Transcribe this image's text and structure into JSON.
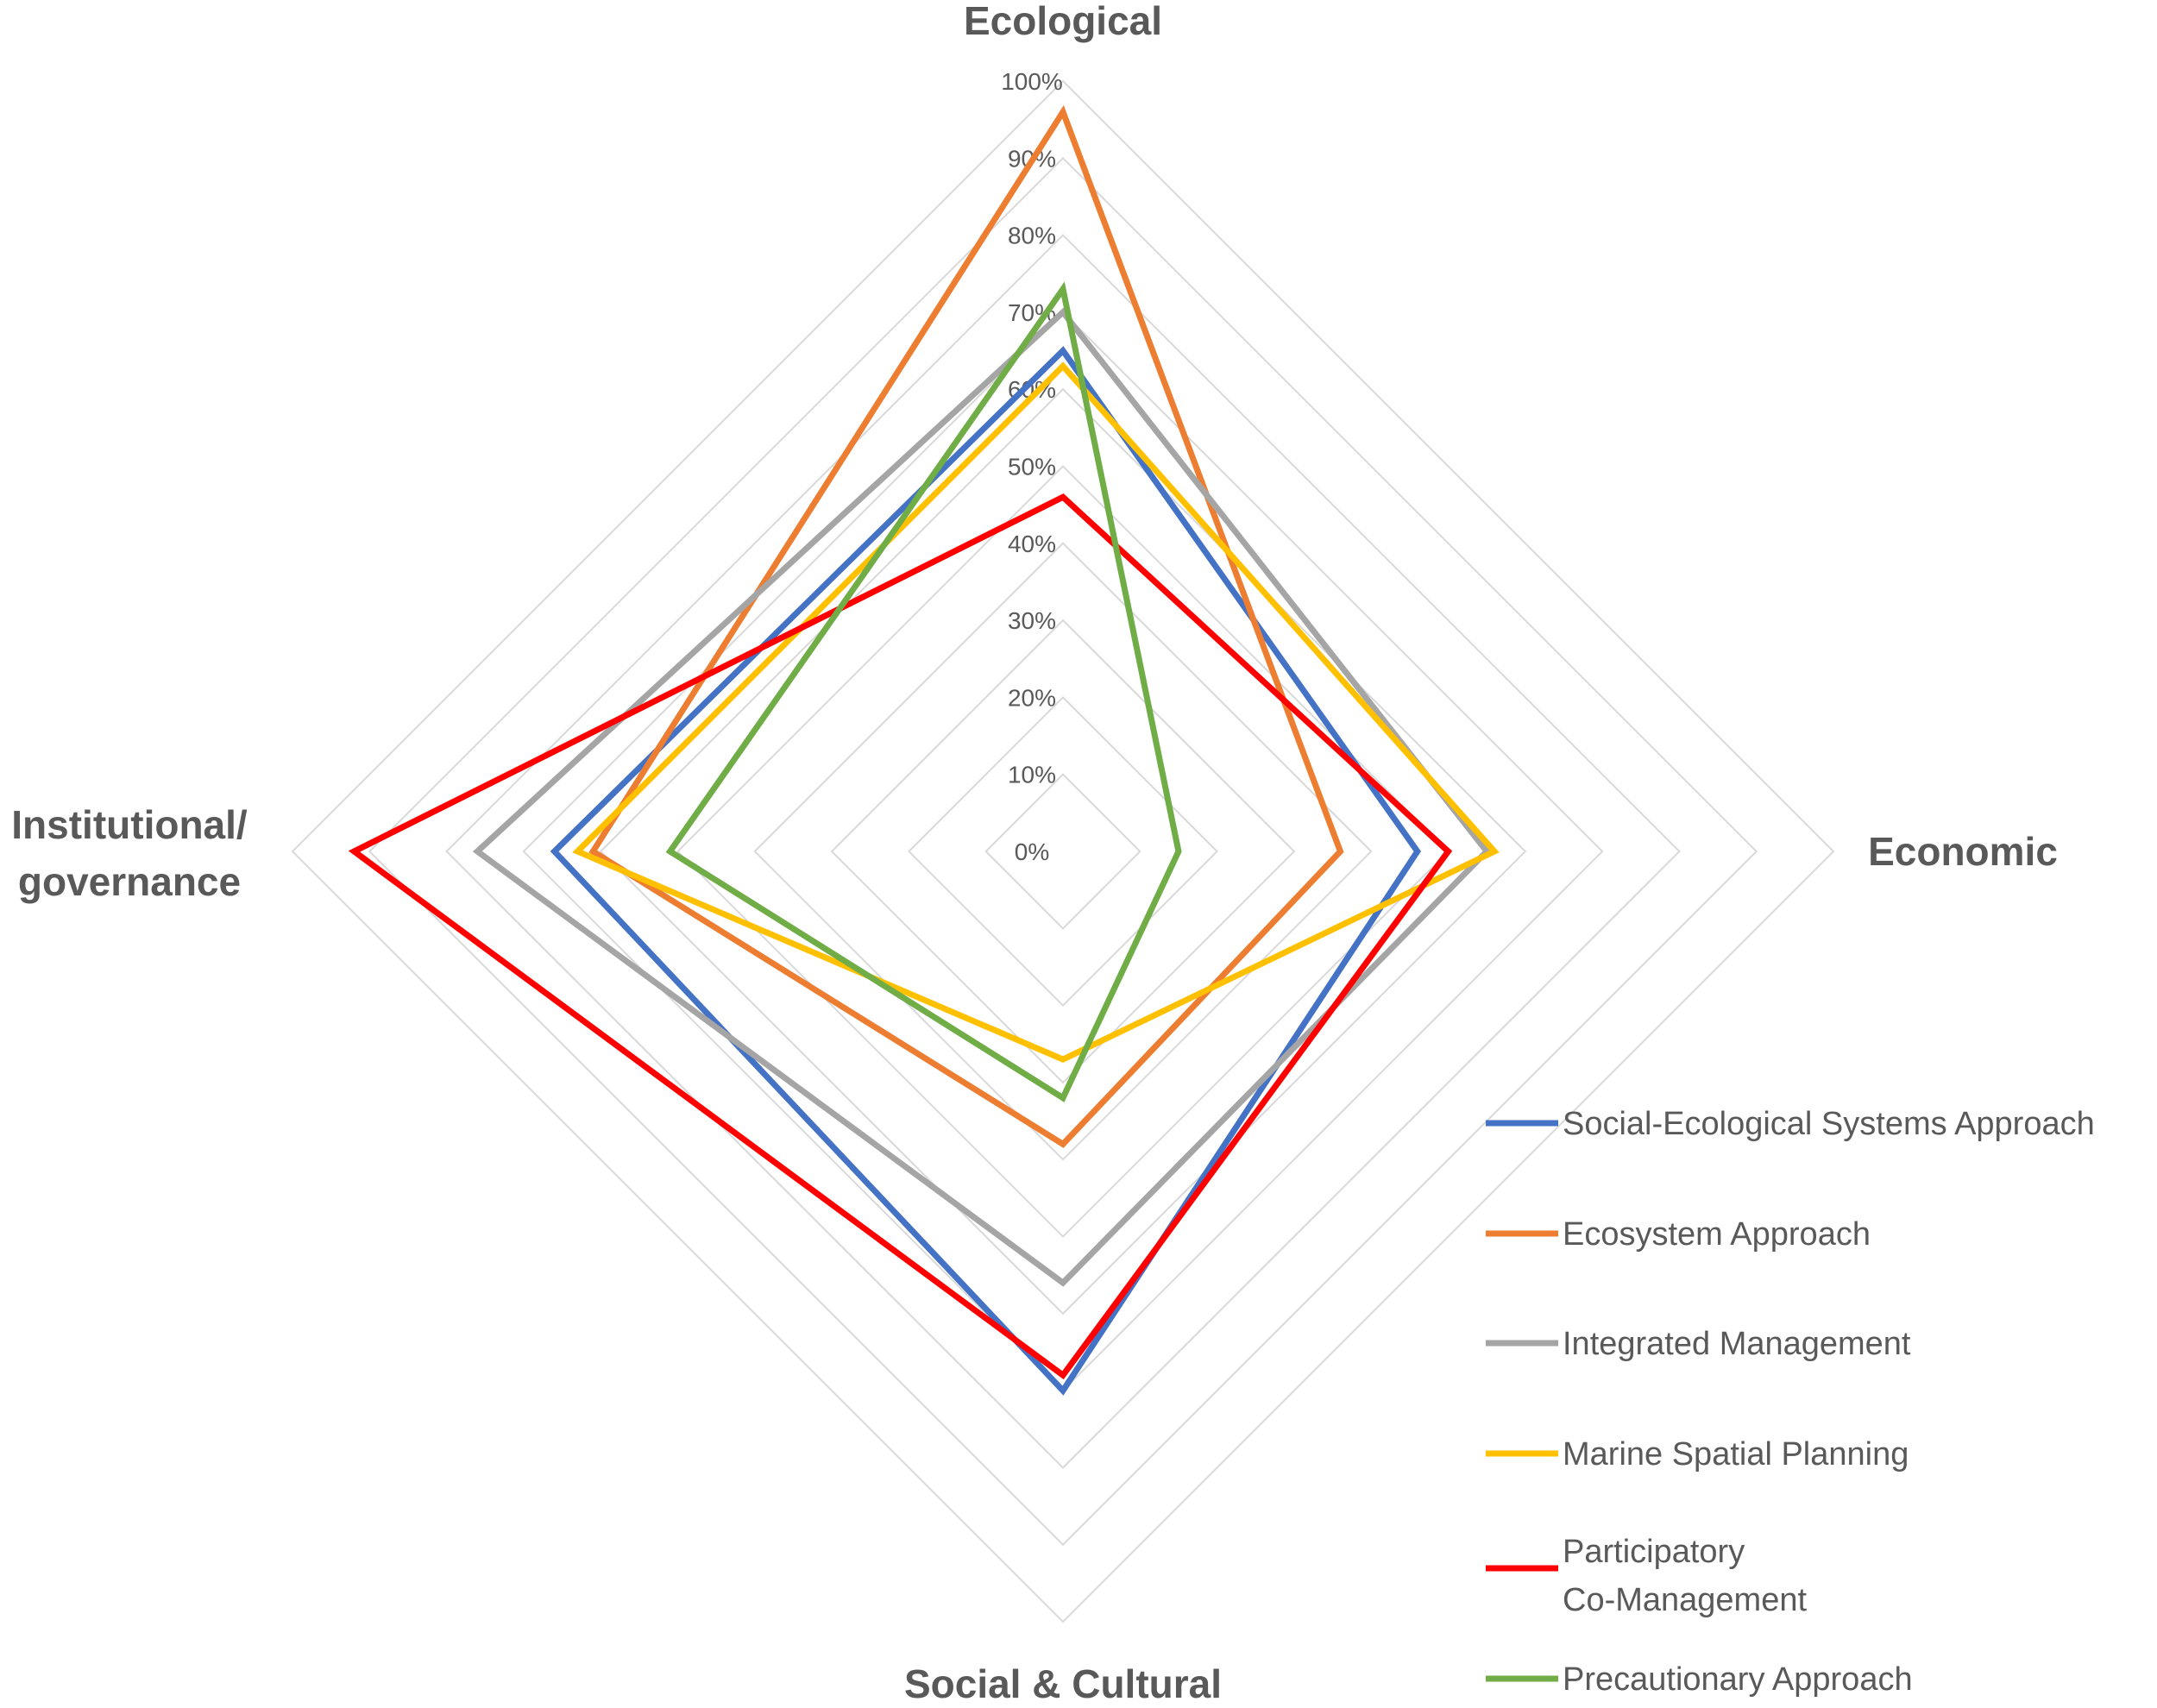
{
  "chart_data": {
    "type": "radar",
    "title": "",
    "axes": [
      "Ecological",
      "Economic",
      "Social & Cultural",
      "Institutional/ governance"
    ],
    "axis_label_lines": [
      [
        "Ecological"
      ],
      [
        "Economic"
      ],
      [
        "Social & Cultural"
      ],
      [
        "Institutional/",
        "governance"
      ]
    ],
    "range": [
      0,
      100
    ],
    "ticks": [
      0,
      10,
      20,
      30,
      40,
      50,
      60,
      70,
      80,
      90,
      100
    ],
    "tick_labels": [
      "0%",
      "10%",
      "20%",
      "30%",
      "40%",
      "50%",
      "60%",
      "70%",
      "80%",
      "90%",
      "100%"
    ],
    "legend_position": "bottom-right",
    "series": [
      {
        "name": "Social-Ecological Systems Approach",
        "label_lines": [
          "Social-Ecological Systems Approach"
        ],
        "color": "#4472C4",
        "values": [
          65,
          46,
          70,
          66
        ]
      },
      {
        "name": "Ecosystem Approach",
        "label_lines": [
          "Ecosystem Approach"
        ],
        "color": "#ED7D31",
        "values": [
          96,
          36,
          38,
          61
        ]
      },
      {
        "name": "Integrated Management",
        "label_lines": [
          "Integrated Management"
        ],
        "color": "#A5A5A5",
        "values": [
          70,
          55,
          56,
          76
        ]
      },
      {
        "name": "Marine Spatial Planning",
        "label_lines": [
          "Marine Spatial Planning"
        ],
        "color": "#FFC000",
        "values": [
          63,
          56,
          27,
          63
        ]
      },
      {
        "name": "Participatory Co-Management",
        "label_lines": [
          "Participatory",
          "Co-Management"
        ],
        "color": "#FF0000",
        "values": [
          46,
          50,
          68,
          92
        ]
      },
      {
        "name": "Precautionary Approach",
        "label_lines": [
          "Precautionary Approach"
        ],
        "color": "#70AD47",
        "values": [
          73,
          15,
          32,
          51
        ]
      }
    ]
  }
}
